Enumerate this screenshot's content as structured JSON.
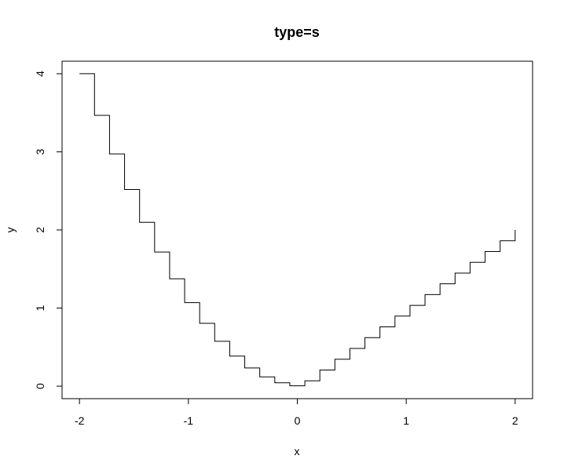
{
  "chart_data": {
    "type": "line",
    "step": "s",
    "title": "type=s",
    "xlabel": "x",
    "ylabel": "y",
    "xlim": [
      -2.16,
      2.16
    ],
    "ylim": [
      -0.16,
      4.16
    ],
    "x_ticks": [
      -2,
      -1,
      0,
      1,
      2
    ],
    "y_ticks": [
      0,
      1,
      2,
      3,
      4
    ],
    "x_tick_labels": [
      "-2",
      "-1",
      "0",
      "1",
      "2"
    ],
    "y_tick_labels": [
      "0",
      "1",
      "2",
      "3",
      "4"
    ],
    "grid": false,
    "legend": "none",
    "line_color": "#000000",
    "series": [
      {
        "x": [
          -2.0,
          -1.8621,
          -1.7241,
          -1.5862,
          -1.4483,
          -1.3103,
          -1.1724,
          -1.0345,
          -0.8966,
          -0.7586,
          -0.6207,
          -0.4828,
          -0.3448,
          -0.2069,
          -0.069,
          0.069,
          0.2069,
          0.3448,
          0.4828,
          0.6207,
          0.7586,
          0.8966,
          1.0345,
          1.1724,
          1.3103,
          1.4483,
          1.5862,
          1.7241,
          1.8621,
          2.0
        ],
        "y": [
          4.0,
          3.467,
          2.973,
          2.517,
          2.098,
          1.717,
          1.374,
          1.07,
          0.804,
          0.575,
          0.385,
          0.233,
          0.119,
          0.043,
          0.005,
          0.069,
          0.207,
          0.345,
          0.483,
          0.621,
          0.759,
          0.897,
          1.034,
          1.172,
          1.31,
          1.448,
          1.586,
          1.724,
          1.862,
          2.0
        ]
      }
    ]
  }
}
